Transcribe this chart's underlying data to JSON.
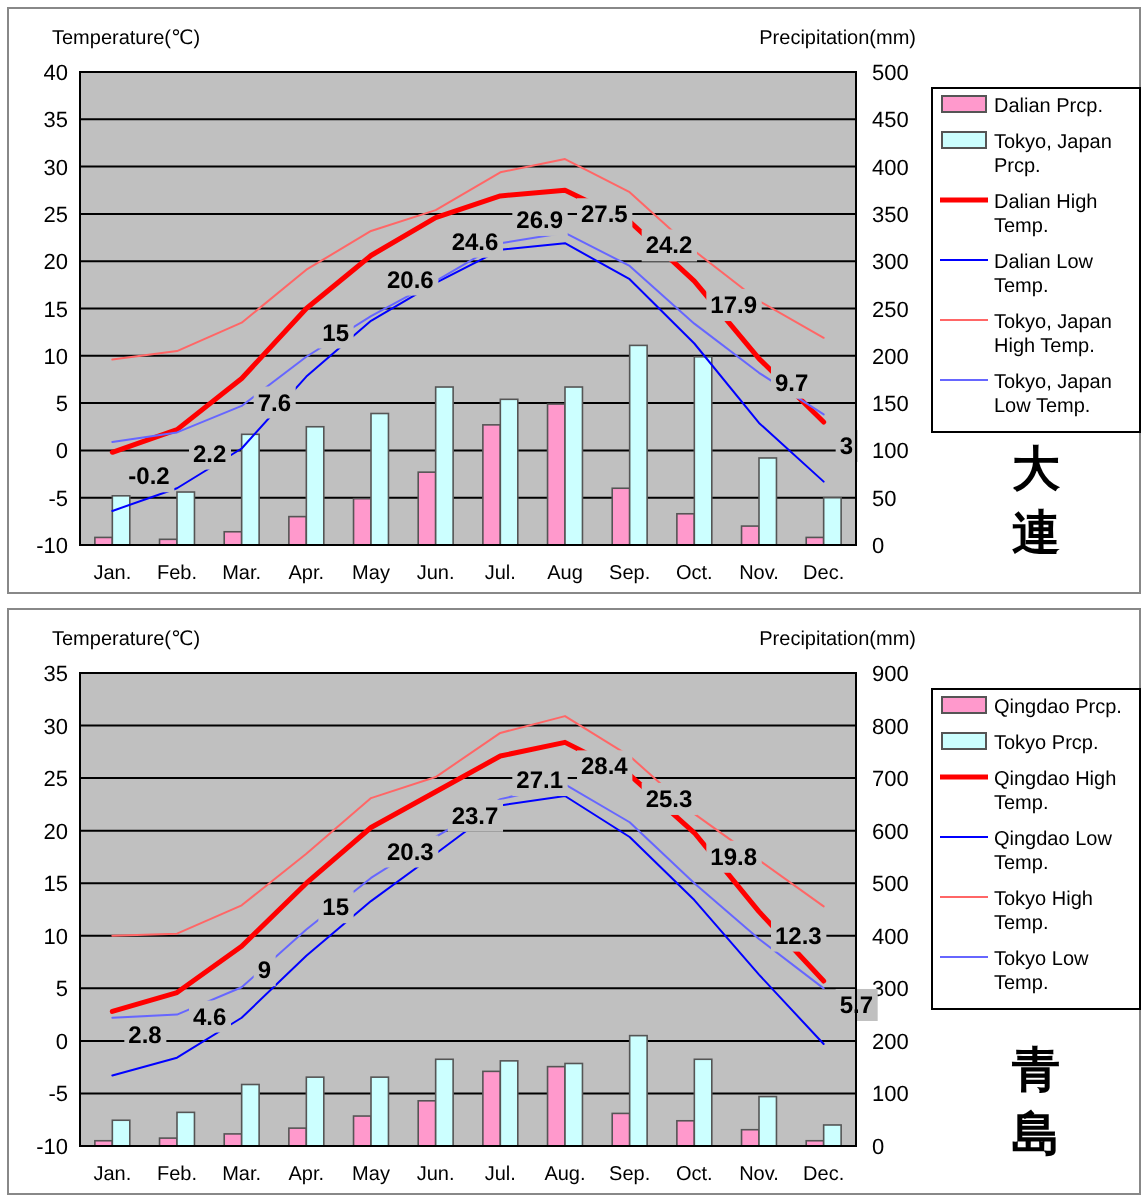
{
  "chart_data": [
    {
      "type": "line",
      "annotations": [
        "大連"
      ],
      "ylabel": "Temperature(℃)",
      "y2label": "Precipitation(mm)",
      "categories": [
        "Jan.",
        "Feb.",
        "Mar.",
        "Apr.",
        "May",
        "Jun.",
        "Jul.",
        "Aug",
        "Sep.",
        "Oct.",
        "Nov.",
        "Dec."
      ],
      "ylim": [
        -10,
        40
      ],
      "yticks": [
        -10,
        -5,
        0,
        5,
        10,
        15,
        20,
        25,
        30,
        35,
        40
      ],
      "y2lim": [
        0,
        500
      ],
      "y2ticks": [
        0,
        50,
        100,
        150,
        200,
        250,
        300,
        350,
        400,
        450,
        500
      ],
      "grid": "y",
      "legend": "right",
      "marker": "none",
      "series": [
        {
          "name": "Dalian Prcp.",
          "type": "bar",
          "axis": "y2",
          "color": "#ff99cc",
          "values": [
            8,
            6,
            14,
            30,
            49,
            77,
            127,
            149,
            60,
            33,
            20,
            8
          ]
        },
        {
          "name": "Tokyo, Japan Prcp.",
          "type": "bar",
          "axis": "y2",
          "color": "#ccffff",
          "values": [
            52,
            56,
            117,
            125,
            139,
            167,
            154,
            167,
            211,
            199,
            92,
            50
          ]
        },
        {
          "name": "Dalian High Temp.",
          "color": "#ff0000",
          "values": [
            -0.2,
            2.2,
            7.6,
            15,
            20.6,
            24.6,
            26.9,
            27.5,
            24.2,
            17.9,
            9.7,
            3
          ],
          "value_labels": [
            "-0.2",
            "2.2",
            "7.6",
            "15",
            "20.6",
            "24.6",
            "26.9",
            "27.5",
            "24.2",
            "17.9",
            "9.7",
            "3"
          ]
        },
        {
          "name": "Dalian Low Temp.",
          "color": "#0000ff",
          "values": [
            -6.4,
            -4.0,
            0.2,
            7.8,
            13.7,
            17.7,
            21.2,
            21.9,
            18.1,
            11.3,
            2.9,
            -3.3
          ]
        },
        {
          "name": "Tokyo, Japan High Temp.",
          "color": "#ff6666",
          "values": [
            9.6,
            10.5,
            13.5,
            19.1,
            23.2,
            25.4,
            29.4,
            30.8,
            27.3,
            21.1,
            15.8,
            11.9
          ]
        },
        {
          "name": "Tokyo, Japan Low Temp.",
          "color": "#6666ff",
          "values": [
            0.9,
            1.9,
            4.7,
            9.9,
            14.2,
            17.9,
            21.9,
            23.0,
            19.5,
            13.4,
            8.2,
            3.8
          ]
        }
      ]
    },
    {
      "type": "line",
      "annotations": [
        "青島"
      ],
      "ylabel": "Temperature(℃)",
      "y2label": "Precipitation(mm)",
      "categories": [
        "Jan.",
        "Feb.",
        "Mar.",
        "Apr.",
        "May",
        "Jun.",
        "Jul.",
        "Aug.",
        "Sep.",
        "Oct.",
        "Nov.",
        "Dec."
      ],
      "ylim": [
        -10,
        35
      ],
      "yticks": [
        -10,
        -5,
        0,
        5,
        10,
        15,
        20,
        25,
        30,
        35
      ],
      "y2lim": [
        0,
        900
      ],
      "y2ticks": [
        0,
        100,
        200,
        300,
        400,
        500,
        600,
        700,
        800,
        900
      ],
      "grid": "y",
      "legend": "right",
      "marker": "none",
      "series": [
        {
          "name": "Qingdao Prcp.",
          "type": "bar",
          "axis": "y2",
          "color": "#ff99cc",
          "values": [
            10,
            15,
            23,
            34,
            57,
            86,
            142,
            151,
            62,
            48,
            31,
            10
          ]
        },
        {
          "name": "Tokyo Prcp.",
          "type": "bar",
          "axis": "y2",
          "color": "#ccffff",
          "values": [
            49,
            64,
            117,
            131,
            131,
            165,
            162,
            157,
            210,
            165,
            94,
            40
          ]
        },
        {
          "name": "Qingdao High Temp.",
          "color": "#ff0000",
          "values": [
            2.8,
            4.6,
            9,
            15,
            20.3,
            23.7,
            27.1,
            28.4,
            25.3,
            19.8,
            12.3,
            5.7
          ],
          "value_labels": [
            "2.8",
            "4.6",
            "9",
            "15",
            "20.3",
            "23.7",
            "27.1",
            "28.4",
            "25.3",
            "19.8",
            "12.3",
            "5.7"
          ]
        },
        {
          "name": "Qingdao Low Temp.",
          "color": "#0000ff",
          "values": [
            -3.3,
            -1.6,
            2.2,
            8.1,
            13.3,
            17.8,
            22.4,
            23.3,
            19.4,
            13.4,
            6.3,
            -0.3
          ]
        },
        {
          "name": "Tokyo High Temp.",
          "color": "#ff6666",
          "values": [
            10,
            10.2,
            12.9,
            17.8,
            23.1,
            25.1,
            29.3,
            30.9,
            27.1,
            21.6,
            17.2,
            12.8
          ]
        },
        {
          "name": "Tokyo Low Temp.",
          "color": "#6666ff",
          "values": [
            2.2,
            2.5,
            5.1,
            10.6,
            15.5,
            19.4,
            23,
            24.4,
            20.8,
            15,
            9.7,
            5.0
          ]
        }
      ]
    }
  ]
}
